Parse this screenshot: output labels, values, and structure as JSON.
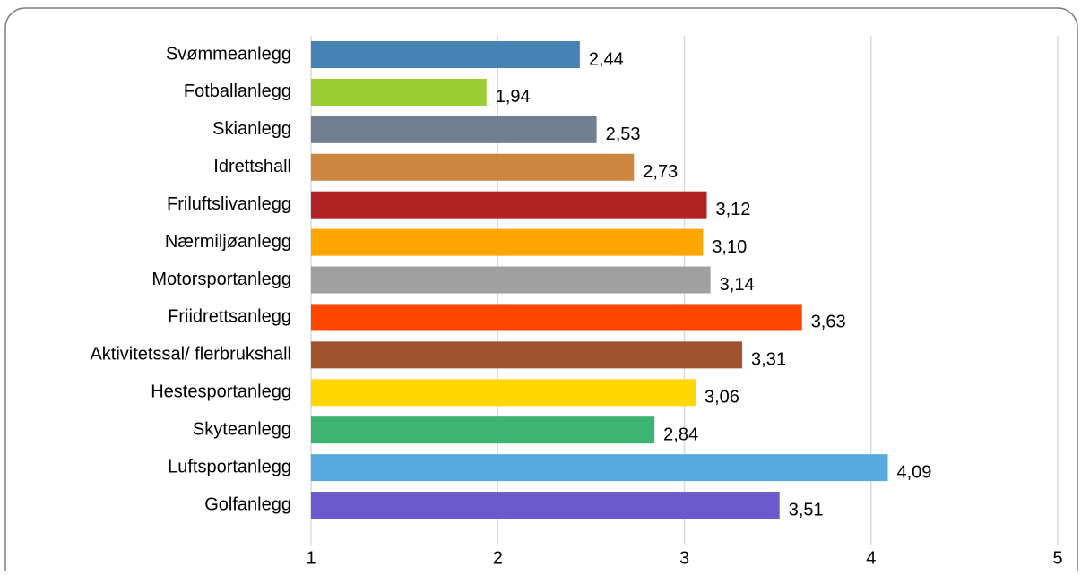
{
  "chart_data": {
    "type": "bar",
    "orientation": "horizontal",
    "categories": [
      "Svømmeanlegg",
      "Fotballanlegg",
      "Skianlegg",
      "Idrettshall",
      "Friluftslivanlegg",
      "Nærmiljøanlegg",
      "Motorsportanlegg",
      "Friidrettsanlegg",
      "Aktivitetssal/ flerbrukshall",
      "Hestesportanlegg",
      "Skyteanlegg",
      "Luftsportanlegg",
      "Golfanlegg"
    ],
    "values": [
      2.44,
      1.94,
      2.53,
      2.73,
      3.12,
      3.1,
      3.14,
      3.63,
      3.31,
      3.06,
      2.84,
      4.09,
      3.51
    ],
    "value_labels": [
      "2,44",
      "1,94",
      "2,53",
      "2,73",
      "3,12",
      "3,10",
      "3,14",
      "3,63",
      "3,31",
      "3,06",
      "2,84",
      "4,09",
      "3,51"
    ],
    "colors": [
      "#4682B4",
      "#9ACD32",
      "#708090",
      "#CD853F",
      "#B22222",
      "#FFA500",
      "#A0A0A0",
      "#FF4500",
      "#A0522D",
      "#FFD700",
      "#3CB371",
      "#56AAE0",
      "#6A5ACD"
    ],
    "xlim": [
      1,
      5
    ],
    "x_ticks": [
      1,
      2,
      3,
      4,
      5
    ],
    "x_tick_labels": [
      "1",
      "2",
      "3",
      "4",
      "5"
    ],
    "grid": true,
    "title": "",
    "xlabel": "",
    "ylabel": ""
  }
}
